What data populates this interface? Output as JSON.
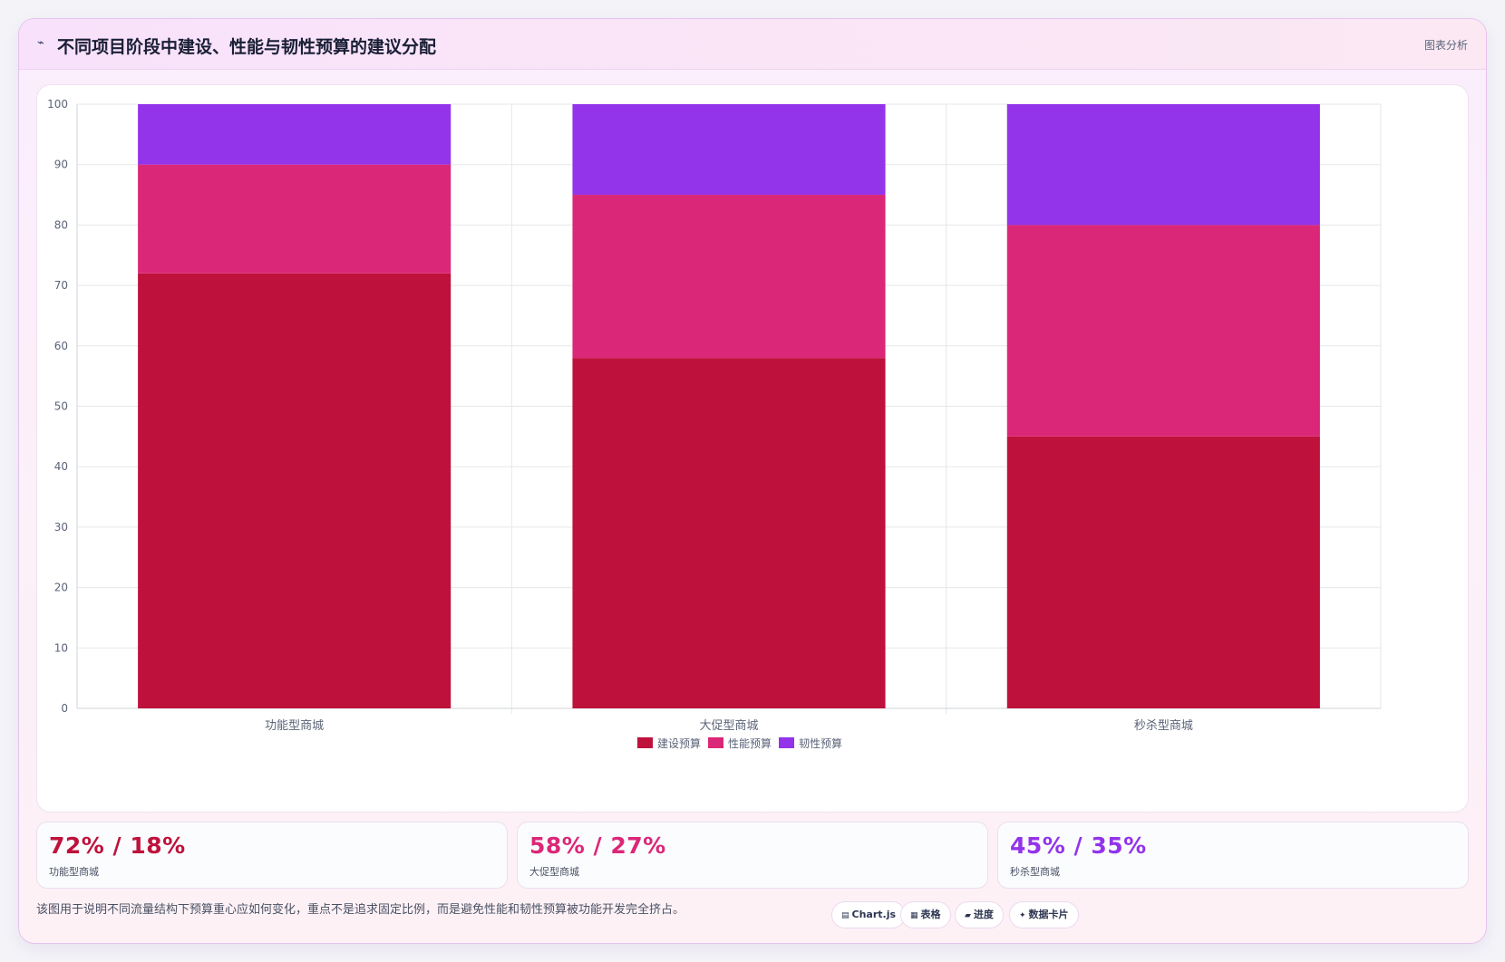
{
  "header": {
    "icon": "chart-line-icon",
    "title": "不同项目阶段中建设、性能与韧性预算的建议分配",
    "tag": "图表分析"
  },
  "colors": {
    "construction": "#be123c",
    "performance": "#db2777",
    "resilience": "#9333ea",
    "grid": "#e5e7eb",
    "axis_text": "#5b6478"
  },
  "chart_data": {
    "type": "bar",
    "stacked": true,
    "categories": [
      "功能型商城",
      "大促型商城",
      "秒杀型商城"
    ],
    "series": [
      {
        "name": "建设预算",
        "values": [
          72,
          58,
          45
        ]
      },
      {
        "name": "性能预算",
        "values": [
          18,
          27,
          35
        ]
      },
      {
        "name": "韧性预算",
        "values": [
          10,
          15,
          20
        ]
      }
    ],
    "ylim": [
      0,
      100
    ],
    "yticks": [
      0,
      10,
      20,
      30,
      40,
      50,
      60,
      70,
      80,
      90,
      100
    ],
    "grid": true,
    "legend": "bottom-center"
  },
  "stats": [
    {
      "value": "72% / 18%",
      "label": "功能型商城",
      "color": "#be123c"
    },
    {
      "value": "58% / 27%",
      "label": "大促型商城",
      "color": "#db2777"
    },
    {
      "value": "45% / 35%",
      "label": "秒杀型商城",
      "color": "#9333ea"
    }
  ],
  "footer": {
    "note": "该图用于说明不同流量结构下预算重心应如何变化，重点不是追求固定比例，而是避免性能和韧性预算被功能开发完全挤占。",
    "pills": [
      {
        "icon": "chart-icon",
        "glyph": "▤",
        "label": "Chart.js"
      },
      {
        "icon": "table-icon",
        "glyph": "▦",
        "label": "表格"
      },
      {
        "icon": "progress-icon",
        "glyph": "▰",
        "label": "进度"
      },
      {
        "icon": "sparkle-icon",
        "glyph": "✦",
        "label": "数据卡片"
      }
    ]
  }
}
